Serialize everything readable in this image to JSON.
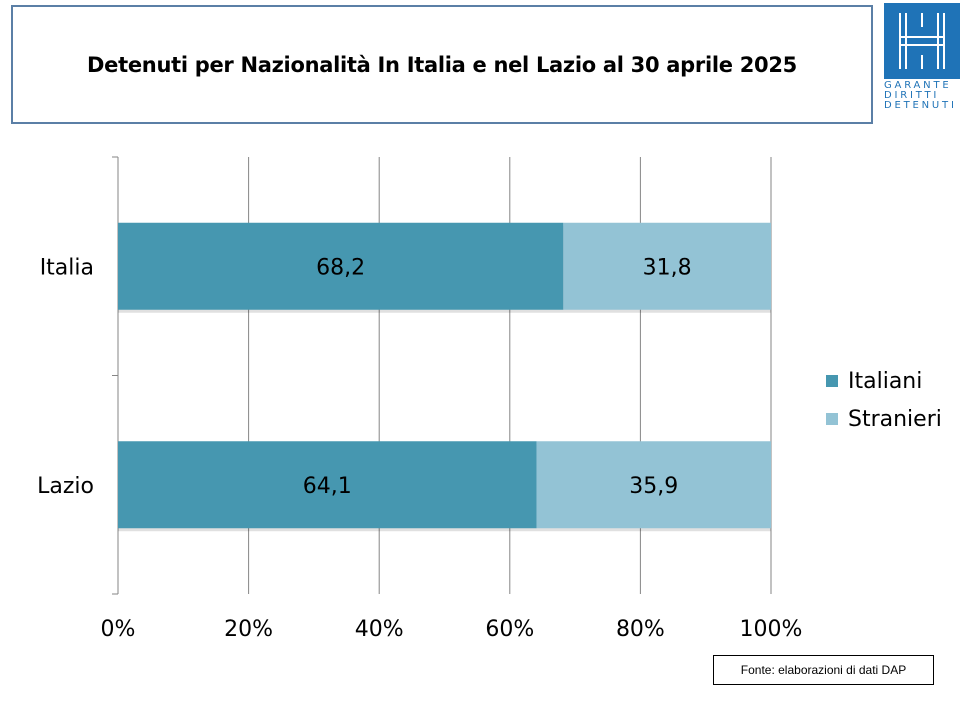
{
  "header": {
    "title": "Detenuti per Nazionalità In Italia e nel Lazio al 30 aprile 2025"
  },
  "logo": {
    "icon": "garante-logo-icon",
    "lines": [
      "GARANTE",
      "DIRITTI",
      "DETENUTI"
    ]
  },
  "chart_data": {
    "type": "bar",
    "orientation": "horizontal",
    "stacked": true,
    "percent_stacked": true,
    "categories": [
      "Italia",
      "Lazio"
    ],
    "series": [
      {
        "name": "Italiani",
        "values": [
          68.2,
          64.1
        ],
        "color": "#4697b0"
      },
      {
        "name": "Stranieri",
        "values": [
          31.8,
          35.9
        ],
        "color": "#93c3d5"
      }
    ],
    "data_labels": [
      [
        "68,2",
        "64,1"
      ],
      [
        "31,8",
        "35,9"
      ]
    ],
    "xlim": [
      0,
      100
    ],
    "x_ticks": [
      0,
      20,
      40,
      60,
      80,
      100
    ],
    "x_tick_labels": [
      "0%",
      "20%",
      "40%",
      "60%",
      "80%",
      "100%"
    ],
    "grid": true,
    "legend_position": "right"
  },
  "footer": {
    "source": "Fonte: elaborazioni di dati DAP"
  }
}
